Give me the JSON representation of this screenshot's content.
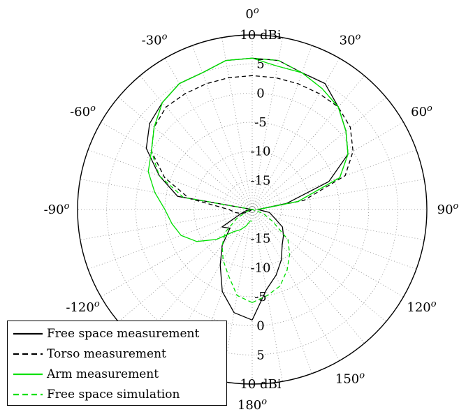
{
  "chart_data": {
    "type": "polar",
    "angle_unit": "degrees",
    "angle_zero": "top",
    "angle_direction": "clockwise",
    "radial_unit": "dBi",
    "rlim": [
      -20,
      10
    ],
    "radial_ticks": [
      "10 dBi",
      "5",
      "0",
      "-5",
      "-10",
      "-15"
    ],
    "radial_tick_values": [
      10,
      5,
      0,
      -5,
      -10,
      -15
    ],
    "angle_tick_labels": [
      {
        "angle": 0,
        "label": "0",
        "sup": "o"
      },
      {
        "angle": 30,
        "label": "30",
        "sup": "o"
      },
      {
        "angle": 60,
        "label": "60",
        "sup": "o"
      },
      {
        "angle": 90,
        "label": "90",
        "sup": "o"
      },
      {
        "angle": 120,
        "label": "120",
        "sup": "o"
      },
      {
        "angle": 150,
        "label": "150",
        "sup": "o"
      },
      {
        "angle": 180,
        "label": "180",
        "sup": "o"
      },
      {
        "angle": -30,
        "label": "-30",
        "sup": "o"
      },
      {
        "angle": -60,
        "label": "-60",
        "sup": "o"
      },
      {
        "angle": -90,
        "label": "-90",
        "sup": "o"
      },
      {
        "angle": -120,
        "label": "-120",
        "sup": "o"
      }
    ],
    "grid": true,
    "legend_position": "bottom-left",
    "series": [
      {
        "name": "Free space measurement",
        "color": "#000000",
        "dash": "solid",
        "angles": [
          -180,
          -170,
          -160,
          -150,
          -140,
          -130,
          -120,
          -110,
          -100,
          -90,
          -80,
          -70,
          -60,
          -50,
          -40,
          -30,
          -20,
          -10,
          0,
          10,
          20,
          30,
          40,
          50,
          60,
          70,
          80,
          90,
          100,
          110,
          120,
          130,
          140,
          150,
          160,
          170,
          180
        ],
        "values": [
          -1,
          -2,
          -5,
          -9,
          -12,
          -15,
          -14,
          -18,
          -19,
          -20,
          -7,
          -3,
          1,
          3,
          4,
          5,
          5,
          6,
          6,
          6,
          5,
          5,
          3,
          1,
          -1,
          -6,
          -14,
          -19,
          -17,
          -16,
          -14,
          -13,
          -12,
          -10,
          -8,
          -6,
          -1
        ]
      },
      {
        "name": "Torso measurement",
        "color": "#000000",
        "dash": "dashed",
        "angles": [
          -180,
          -170,
          -160,
          -150,
          -140,
          -130,
          -120,
          -110,
          -100,
          -90,
          -80,
          -70,
          -60,
          -50,
          -40,
          -30,
          -20,
          -10,
          0,
          10,
          20,
          30,
          40,
          50,
          60,
          70,
          80,
          90
        ],
        "values": [
          -20,
          -20,
          -20,
          -20,
          -20,
          -20,
          -19,
          -18,
          -17,
          -16,
          -9,
          -4,
          0,
          2,
          3,
          3,
          3,
          3,
          3,
          3,
          3,
          3,
          3,
          2,
          0,
          -3,
          -11,
          -19
        ]
      },
      {
        "name": "Arm measurement",
        "color": "#00e000",
        "dash": "solid",
        "angles": [
          -180,
          -170,
          -160,
          -150,
          -140,
          -130,
          -120,
          -110,
          -100,
          -90,
          -80,
          -70,
          -60,
          -50,
          -40,
          -30,
          -20,
          -10,
          0,
          10,
          20,
          30,
          40,
          50,
          60,
          70,
          80,
          90
        ],
        "values": [
          -18,
          -18,
          -17,
          -16,
          -15,
          -12,
          -9,
          -7,
          -6,
          -5,
          -3,
          -1,
          0,
          2,
          4,
          5,
          5,
          6,
          6,
          5,
          5,
          4,
          3,
          1,
          -1,
          -4,
          -12,
          -19
        ]
      },
      {
        "name": "Free space simulation",
        "color": "#00e000",
        "dash": "dashed",
        "angles": [
          -180,
          -170,
          -160,
          -150,
          -140,
          -130,
          -120,
          -110,
          -100,
          -90,
          -80,
          -70,
          -60,
          -50,
          -40,
          -30,
          -20,
          -10,
          0,
          10,
          20,
          30,
          40,
          50,
          60,
          70,
          80,
          90,
          100,
          110,
          120,
          130,
          140,
          150,
          160,
          170,
          180
        ],
        "values": [
          -4,
          -5,
          -8,
          -10,
          -12,
          -14,
          -17,
          -19,
          -20,
          -20,
          -8,
          -3,
          0,
          2,
          4,
          5,
          5,
          6,
          6,
          6,
          5,
          4,
          3,
          1,
          -1,
          -4,
          -12,
          -19,
          -20,
          -18,
          -16,
          -12,
          -10,
          -8,
          -6,
          -5,
          -4
        ]
      }
    ]
  }
}
